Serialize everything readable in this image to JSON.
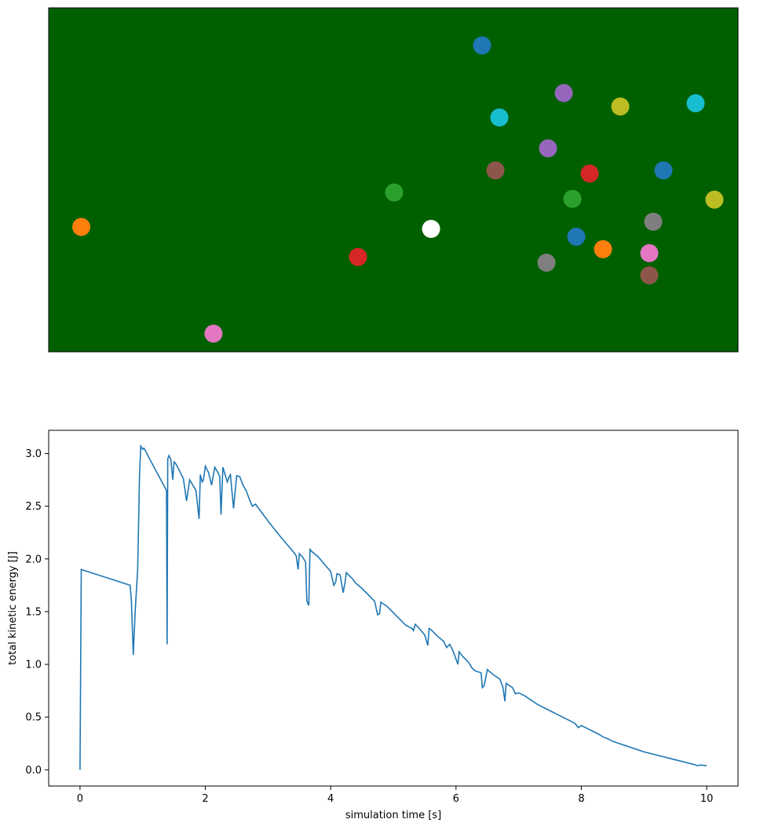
{
  "chart_data": [
    {
      "type": "scatter",
      "subject": "billiard table top view",
      "table_color": "#006000",
      "grid": false,
      "axes_visible": false,
      "balls": [
        {
          "x": 0.0473,
          "y": 0.363,
          "color": "#ff7f0e"
        },
        {
          "x": 0.2391,
          "y": 0.0528,
          "color": "#e377c2"
        },
        {
          "x": 0.4487,
          "y": 0.2758,
          "color": "#d62728"
        },
        {
          "x": 0.5011,
          "y": 0.4631,
          "color": "#2ca02c"
        },
        {
          "x": 0.5547,
          "y": 0.3574,
          "color": "#ffffff"
        },
        {
          "x": 0.6287,
          "y": 0.8908,
          "color": "#1f77b4"
        },
        {
          "x": 0.6538,
          "y": 0.6811,
          "color": "#17becf"
        },
        {
          "x": 0.6481,
          "y": 0.5274,
          "color": "#8c564b"
        },
        {
          "x": 0.7244,
          "y": 0.5917,
          "color": "#9467bd"
        },
        {
          "x": 0.7472,
          "y": 0.7523,
          "color": "#9467bd"
        },
        {
          "x": 0.7221,
          "y": 0.2592,
          "color": "#7f7f7f"
        },
        {
          "x": 0.7597,
          "y": 0.4447,
          "color": "#2ca02c"
        },
        {
          "x": 0.7654,
          "y": 0.3344,
          "color": "#1f77b4"
        },
        {
          "x": 0.7848,
          "y": 0.5183,
          "color": "#d62728"
        },
        {
          "x": 0.8041,
          "y": 0.2982,
          "color": "#ff7f0e"
        },
        {
          "x": 0.8292,
          "y": 0.7133,
          "color": "#bcbd22"
        },
        {
          "x": 0.8713,
          "y": 0.2224,
          "color": "#8c564b"
        },
        {
          "x": 0.8713,
          "y": 0.2867,
          "color": "#e377c2"
        },
        {
          "x": 0.877,
          "y": 0.3781,
          "color": "#7f7f7f"
        },
        {
          "x": 0.8918,
          "y": 0.5274,
          "color": "#1f77b4"
        },
        {
          "x": 0.9385,
          "y": 0.7225,
          "color": "#17becf"
        },
        {
          "x": 0.9658,
          "y": 0.4424,
          "color": "#bcbd22"
        }
      ]
    },
    {
      "type": "line",
      "xlabel": "simulation time [s]",
      "ylabel": "total kinetic energy [J]",
      "xlim": [
        -0.5,
        10.5
      ],
      "ylim": [
        -0.154,
        3.22
      ],
      "xticks": [
        0,
        2,
        4,
        6,
        8,
        10
      ],
      "xtick_labels": [
        "0",
        "2",
        "4",
        "6",
        "8",
        "10"
      ],
      "yticks": [
        0.0,
        0.5,
        1.0,
        1.5,
        2.0,
        2.5,
        3.0
      ],
      "ytick_labels": [
        "0.0",
        "0.5",
        "1.0",
        "1.5",
        "2.0",
        "2.5",
        "3.0"
      ],
      "grid": false,
      "line_color": "#1f77b4",
      "series": [
        {
          "x": [
            0,
            0.02,
            0.8,
            0.82,
            0.85,
            0.88,
            0.92,
            0.95,
            0.97,
            1.0,
            1.02,
            1.05,
            1.1,
            1.38,
            1.39,
            1.4,
            1.42,
            1.45,
            1.48,
            1.5,
            1.52,
            1.55,
            1.6,
            1.65,
            1.7,
            1.75,
            1.78,
            1.8,
            1.85,
            1.9,
            1.92,
            1.95,
            1.97,
            2.0,
            2.05,
            2.1,
            2.15,
            2.2,
            2.23,
            2.25,
            2.28,
            2.3,
            2.35,
            2.38,
            2.4,
            2.45,
            2.5,
            2.55,
            2.6,
            2.65,
            2.7,
            2.75,
            2.8,
            3.0,
            3.2,
            3.4,
            3.45,
            3.48,
            3.5,
            3.55,
            3.6,
            3.62,
            3.65,
            3.67,
            3.7,
            3.8,
            3.9,
            4.0,
            4.05,
            4.08,
            4.1,
            4.15,
            4.2,
            4.23,
            4.25,
            4.3,
            4.35,
            4.4,
            4.5,
            4.6,
            4.7,
            4.75,
            4.78,
            4.8,
            4.9,
            5.0,
            5.1,
            5.2,
            5.3,
            5.32,
            5.35,
            5.4,
            5.5,
            5.55,
            5.57,
            5.6,
            5.7,
            5.8,
            5.85,
            5.9,
            5.95,
            6.0,
            6.03,
            6.05,
            6.1,
            6.2,
            6.25,
            6.3,
            6.4,
            6.42,
            6.45,
            6.5,
            6.6,
            6.7,
            6.75,
            6.78,
            6.8,
            6.9,
            6.95,
            7.0,
            7.1,
            7.2,
            7.3,
            7.4,
            7.5,
            7.6,
            7.7,
            7.8,
            7.9,
            7.95,
            8.0,
            8.1,
            8.2,
            8.3,
            8.35,
            8.4,
            8.5,
            8.6,
            8.7,
            8.8,
            8.9,
            9.0,
            9.2,
            9.4,
            9.6,
            9.8,
            9.85,
            9.9,
            10.0
          ],
          "y": [
            0.0,
            1.9,
            1.75,
            1.6,
            1.09,
            1.5,
            1.9,
            2.8,
            3.07,
            3.04,
            3.05,
            3.02,
            2.96,
            2.65,
            1.19,
            2.95,
            2.98,
            2.94,
            2.75,
            2.92,
            2.91,
            2.88,
            2.82,
            2.76,
            2.55,
            2.75,
            2.72,
            2.7,
            2.65,
            2.38,
            2.8,
            2.73,
            2.75,
            2.88,
            2.82,
            2.7,
            2.87,
            2.82,
            2.78,
            2.42,
            2.87,
            2.83,
            2.73,
            2.78,
            2.8,
            2.48,
            2.79,
            2.78,
            2.7,
            2.65,
            2.57,
            2.5,
            2.52,
            2.36,
            2.21,
            2.07,
            2.03,
            1.9,
            2.05,
            2.02,
            1.97,
            1.6,
            1.56,
            2.09,
            2.07,
            2.02,
            1.95,
            1.88,
            1.75,
            1.78,
            1.86,
            1.85,
            1.68,
            1.78,
            1.87,
            1.84,
            1.81,
            1.77,
            1.72,
            1.66,
            1.6,
            1.47,
            1.48,
            1.59,
            1.55,
            1.49,
            1.43,
            1.37,
            1.34,
            1.32,
            1.38,
            1.35,
            1.28,
            1.18,
            1.34,
            1.33,
            1.27,
            1.22,
            1.16,
            1.19,
            1.13,
            1.05,
            1.0,
            1.12,
            1.08,
            1.02,
            0.97,
            0.94,
            0.92,
            0.78,
            0.8,
            0.95,
            0.9,
            0.86,
            0.78,
            0.65,
            0.82,
            0.78,
            0.72,
            0.73,
            0.7,
            0.66,
            0.62,
            0.59,
            0.56,
            0.53,
            0.5,
            0.47,
            0.44,
            0.4,
            0.42,
            0.39,
            0.36,
            0.33,
            0.31,
            0.3,
            0.27,
            0.25,
            0.23,
            0.21,
            0.19,
            0.17,
            0.14,
            0.11,
            0.08,
            0.05,
            0.04,
            0.045,
            0.04
          ]
        }
      ]
    }
  ]
}
